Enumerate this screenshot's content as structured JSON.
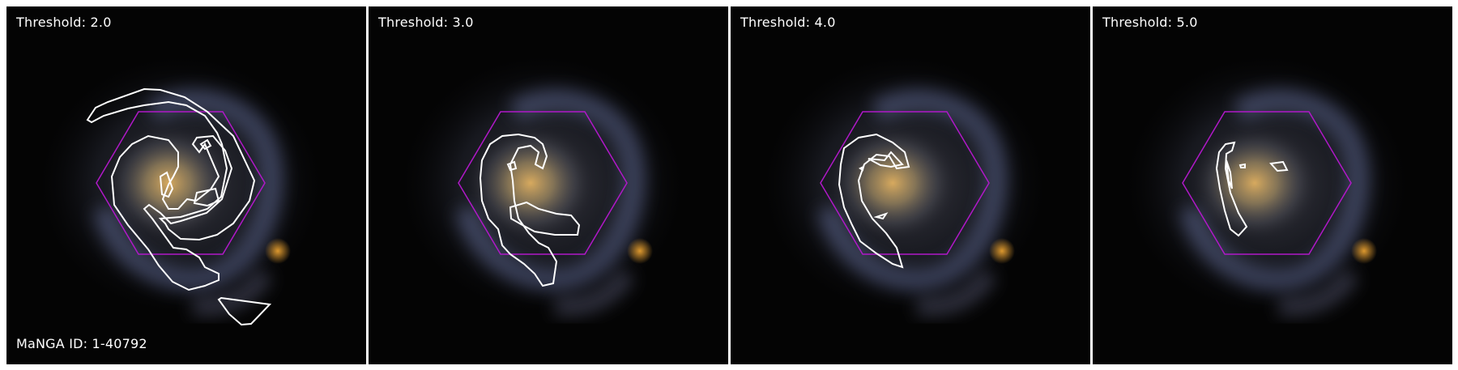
{
  "panels": [
    {
      "threshold_label": "Threshold: 2.0",
      "id_label": "MaNGA ID: 1-40792"
    },
    {
      "threshold_label": "Threshold: 3.0",
      "id_label": ""
    },
    {
      "threshold_label": "Threshold: 4.0",
      "id_label": ""
    },
    {
      "threshold_label": "Threshold: 5.0",
      "id_label": ""
    }
  ],
  "colors": {
    "background": "#040404",
    "hexagon": "#b018c8",
    "contour": "#ffffff",
    "galaxy_core": "#c8a050",
    "spiral_arms": "#7a86b8"
  }
}
